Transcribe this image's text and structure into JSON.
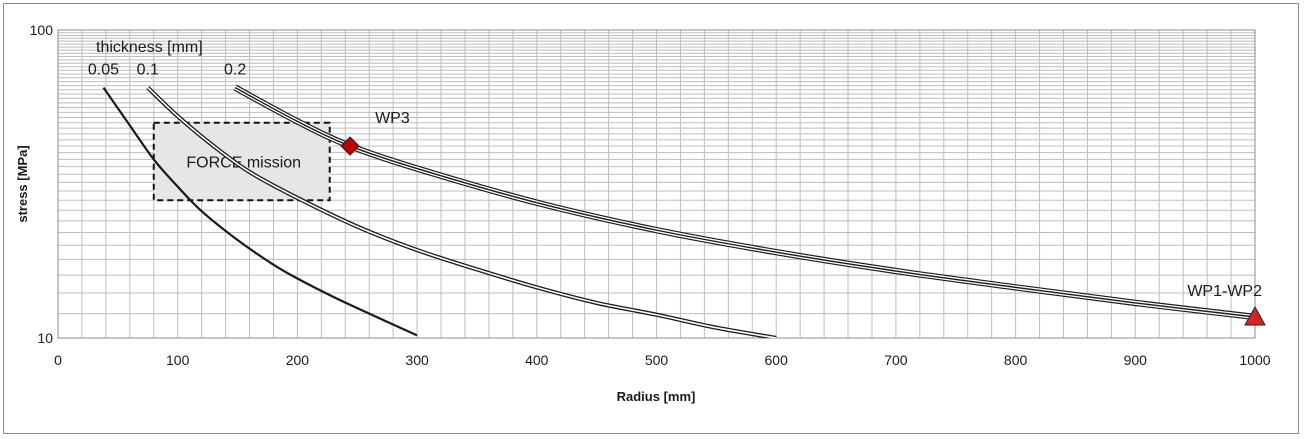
{
  "chart_data": {
    "type": "line",
    "title": "",
    "xlabel": "Radius [mm]",
    "ylabel": "stress [MPa]",
    "xlim": [
      0,
      1000
    ],
    "ylim": [
      10,
      100
    ],
    "y_scale": "log",
    "grid": true,
    "x_ticks": [
      "0",
      "100",
      "200",
      "300",
      "400",
      "500",
      "600",
      "700",
      "800",
      "900",
      "1000"
    ],
    "y_ticks": [
      "10",
      "100"
    ],
    "legend_title": "thickness [mm]",
    "series": [
      {
        "name": "0.05",
        "color": "#1a1a1a",
        "style": "solid",
        "x": [
          38,
          60,
          80,
          100,
          120,
          150,
          180,
          200,
          230,
          260,
          300
        ],
        "y": [
          65,
          49,
          38,
          31,
          25.8,
          20.8,
          17.3,
          15.6,
          13.6,
          12.0,
          10.2
        ]
      },
      {
        "name": "0.1",
        "color": "#1a1a1a",
        "style": "double",
        "x": [
          75,
          100,
          130,
          160,
          200,
          250,
          300,
          350,
          400,
          450,
          500,
          550,
          600
        ],
        "y": [
          65,
          52.5,
          42,
          34.6,
          28.5,
          23.0,
          19.3,
          16.7,
          14.6,
          13.0,
          11.9,
          10.8,
          10.0
        ]
      },
      {
        "name": "0.2",
        "color": "#1a1a1a",
        "style": "triple",
        "x": [
          148,
          200,
          244,
          300,
          400,
          500,
          600,
          700,
          800,
          900,
          1000
        ],
        "y": [
          65,
          50.5,
          42,
          35.5,
          27.5,
          22.4,
          19.0,
          16.5,
          14.6,
          13.0,
          11.7
        ]
      }
    ],
    "shaded_region": {
      "label": "FORCE mission",
      "x": [
        80,
        227
      ],
      "y": [
        28,
        50
      ]
    },
    "markers": [
      {
        "label": "WP3",
        "shape": "diamond",
        "x": 244,
        "y": 42,
        "color": "#c00000"
      },
      {
        "label": "WP1-WP2",
        "shape": "triangle",
        "x": 1000,
        "y": 11.7,
        "color": "#e02020"
      }
    ]
  }
}
